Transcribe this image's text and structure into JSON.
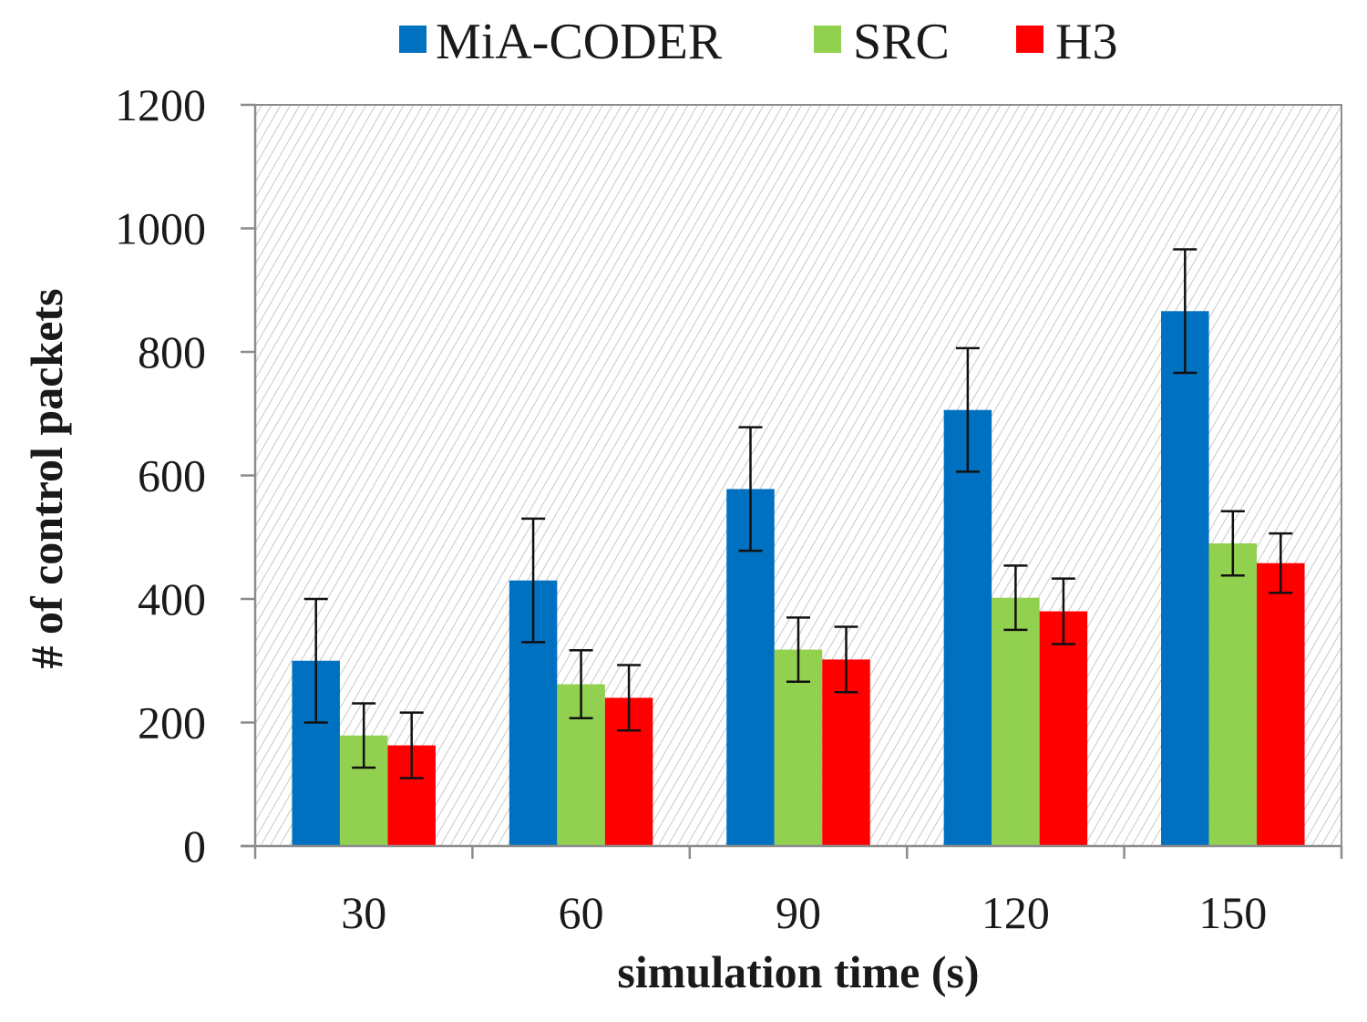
{
  "chart_data": {
    "type": "bar",
    "title": "",
    "xlabel": "simulation time (s)",
    "ylabel": "# of control packets",
    "categories": [
      "30",
      "60",
      "90",
      "120",
      "150"
    ],
    "ylim": [
      0,
      1200
    ],
    "yticks": [
      0,
      200,
      400,
      600,
      800,
      1000,
      1200
    ],
    "legend_position": "top",
    "background": "diagonal-hatch",
    "series": [
      {
        "name": "MiA-CODER",
        "color": "#0070c0",
        "values": [
          300,
          430,
          578,
          706,
          866
        ],
        "errors": [
          100,
          100,
          100,
          100,
          100
        ]
      },
      {
        "name": "SRC",
        "color": "#92d050",
        "values": [
          179,
          262,
          318,
          402,
          490
        ],
        "errors": [
          52,
          55,
          52,
          52,
          52
        ]
      },
      {
        "name": "H3",
        "color": "#ff0000",
        "values": [
          163,
          240,
          302,
          380,
          458
        ],
        "errors": [
          53,
          53,
          53,
          53,
          48
        ]
      }
    ]
  }
}
